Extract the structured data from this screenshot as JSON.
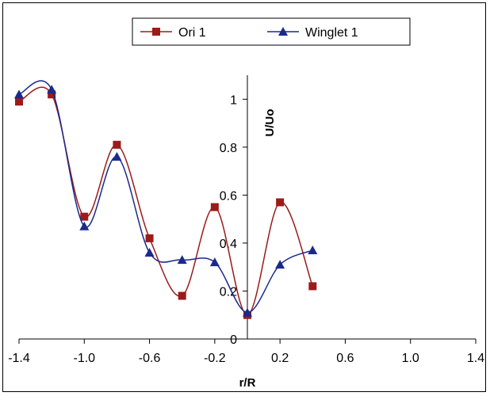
{
  "chart_data": {
    "type": "line",
    "xlabel": "r/R",
    "ylabel": "U/Uo",
    "xlim": [
      -1.4,
      1.4
    ],
    "ylim": [
      0,
      1.1
    ],
    "x_ticks": [
      "-1.4",
      "-1.0",
      "-0.6",
      "-0.2",
      "0.2",
      "0.6",
      "1.0",
      "1.4"
    ],
    "x_tick_values": [
      -1.4,
      -1.0,
      -0.6,
      -0.2,
      0.2,
      0.6,
      1.0,
      1.4
    ],
    "y_ticks": [
      "0",
      "0.2",
      "0.4",
      "0.6",
      "0.8",
      "1"
    ],
    "y_tick_values": [
      0,
      0.2,
      0.4,
      0.6,
      0.8,
      1.0
    ],
    "grid": false,
    "legend_position": "top-center",
    "series": [
      {
        "name": "Ori 1",
        "color": "#9b1b1b",
        "marker": "square",
        "x": [
          -1.4,
          -1.2,
          -1.0,
          -0.8,
          -0.6,
          -0.4,
          -0.2,
          0.0,
          0.2,
          0.4
        ],
        "y": [
          0.99,
          1.02,
          0.51,
          0.81,
          0.42,
          0.18,
          0.55,
          0.1,
          0.57,
          0.22
        ]
      },
      {
        "name": "Winglet 1",
        "color": "#1a2a8c",
        "marker": "triangle",
        "x": [
          -1.4,
          -1.2,
          -1.0,
          -0.8,
          -0.6,
          -0.4,
          -0.2,
          0.0,
          0.2,
          0.4
        ],
        "y": [
          1.02,
          1.04,
          0.47,
          0.76,
          0.36,
          0.33,
          0.32,
          0.11,
          0.31,
          0.37
        ]
      }
    ]
  }
}
